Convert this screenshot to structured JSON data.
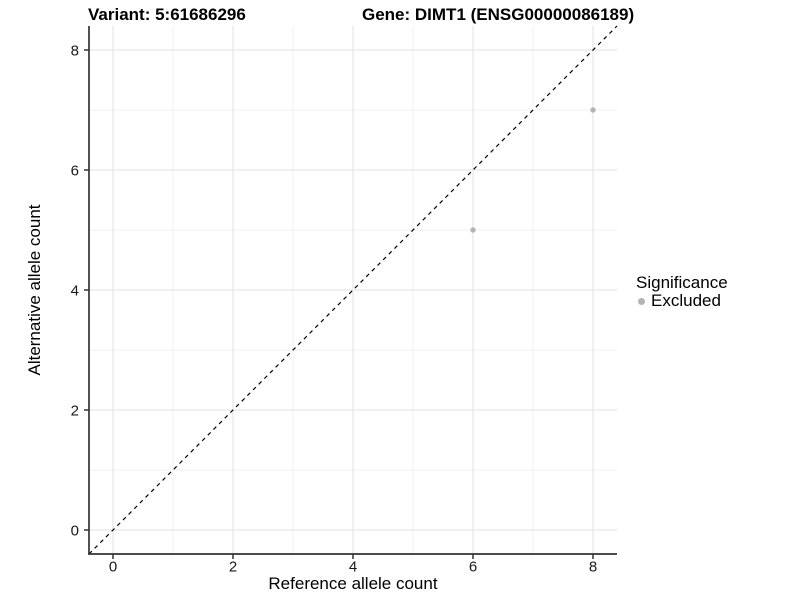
{
  "chart_data": {
    "type": "scatter",
    "title_left": "Variant: 5:61686296",
    "title_right": "Gene: DIMT1 (ENSG00000086189)",
    "xlabel": "Reference allele count",
    "ylabel": "Alternative allele count",
    "xlim": [
      -0.4,
      8.4
    ],
    "ylim": [
      -0.4,
      8.4
    ],
    "x_ticks": [
      0,
      2,
      4,
      6,
      8
    ],
    "y_ticks": [
      0,
      2,
      4,
      6,
      8
    ],
    "x_minor_ticks": [
      1,
      3,
      5,
      7
    ],
    "y_minor_ticks": [
      1,
      3,
      5,
      7
    ],
    "grid": true,
    "identity_line": {
      "style": "dashed",
      "color": "#000000",
      "from": [
        -0.4,
        -0.4
      ],
      "to": [
        8.4,
        8.4
      ]
    },
    "series": [
      {
        "name": "Excluded",
        "color": "#b3b3b3",
        "points": [
          {
            "x": 6,
            "y": 5
          },
          {
            "x": 8,
            "y": 7
          }
        ]
      }
    ],
    "legend": {
      "title": "Significance",
      "position": "right",
      "items": [
        {
          "label": "Excluded",
          "color": "#b3b3b3"
        }
      ]
    },
    "style": {
      "grid_major_color": "#e6e6e6",
      "grid_minor_color": "#f0f0f0",
      "axis_line_color": "#333333",
      "tick_label_color": "#1a1a1a",
      "background": "#ffffff"
    }
  }
}
